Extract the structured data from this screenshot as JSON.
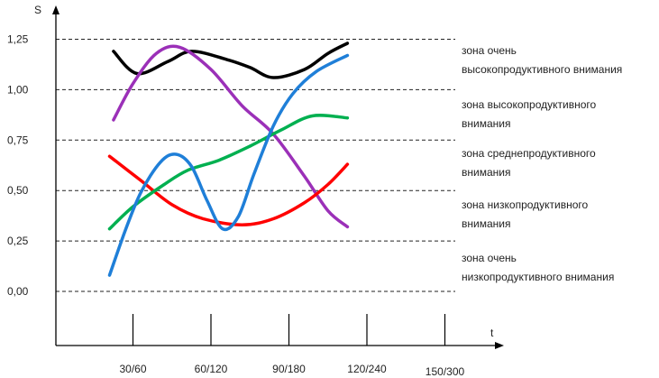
{
  "chart_data": {
    "type": "line",
    "xlabel": "t",
    "ylabel": "S",
    "ylim": [
      0,
      1.3
    ],
    "y_ticks": [
      {
        "value": 0.0,
        "label": "0,00"
      },
      {
        "value": 0.25,
        "label": "0,25"
      },
      {
        "value": 0.5,
        "label": "0,50"
      },
      {
        "value": 0.75,
        "label": "0,75"
      },
      {
        "value": 1.0,
        "label": "1,00"
      },
      {
        "value": 1.25,
        "label": "1,25"
      }
    ],
    "categories": [
      "30/60",
      "60/120",
      "90/180",
      "120/240",
      "150/300"
    ],
    "zones": [
      {
        "lines": [
          "зона очень",
          "высокопродуктивного внимания"
        ]
      },
      {
        "lines": [
          "зона высокопродуктивного",
          "внимания"
        ]
      },
      {
        "lines": [
          "зона среднепродуктивного",
          "внимания"
        ]
      },
      {
        "lines": [
          "зона низкопродуктивного",
          "внимания"
        ]
      },
      {
        "lines": [
          "зона очень",
          "низкопродуктивного внимания"
        ]
      }
    ],
    "grid": true,
    "series": [
      {
        "color": "#000000",
        "points": [
          [
            0.75,
            1.19
          ],
          [
            1.05,
            1.08
          ],
          [
            1.45,
            1.14
          ],
          [
            1.75,
            1.19
          ],
          [
            2.2,
            1.15
          ],
          [
            2.5,
            1.11
          ],
          [
            2.8,
            1.06
          ],
          [
            3.2,
            1.1
          ],
          [
            3.5,
            1.18
          ],
          [
            3.75,
            1.23
          ]
        ]
      },
      {
        "color": "#9b30b8",
        "points": [
          [
            0.75,
            0.85
          ],
          [
            1.0,
            1.03
          ],
          [
            1.3,
            1.18
          ],
          [
            1.6,
            1.21
          ],
          [
            2.0,
            1.1
          ],
          [
            2.4,
            0.92
          ],
          [
            2.8,
            0.78
          ],
          [
            3.2,
            0.57
          ],
          [
            3.5,
            0.4
          ],
          [
            3.75,
            0.32
          ]
        ]
      },
      {
        "color": "#ff0000",
        "points": [
          [
            0.7,
            0.67
          ],
          [
            1.1,
            0.55
          ],
          [
            1.5,
            0.43
          ],
          [
            1.9,
            0.36
          ],
          [
            2.4,
            0.33
          ],
          [
            2.8,
            0.36
          ],
          [
            3.2,
            0.44
          ],
          [
            3.5,
            0.53
          ],
          [
            3.75,
            0.63
          ]
        ]
      },
      {
        "color": "#00b050",
        "points": [
          [
            0.7,
            0.31
          ],
          [
            1.0,
            0.42
          ],
          [
            1.4,
            0.53
          ],
          [
            1.7,
            0.6
          ],
          [
            2.1,
            0.65
          ],
          [
            2.5,
            0.72
          ],
          [
            2.9,
            0.8
          ],
          [
            3.3,
            0.87
          ],
          [
            3.75,
            0.86
          ]
        ]
      },
      {
        "color": "#1f7fd8",
        "points": [
          [
            0.7,
            0.08
          ],
          [
            0.9,
            0.3
          ],
          [
            1.1,
            0.49
          ],
          [
            1.35,
            0.64
          ],
          [
            1.55,
            0.68
          ],
          [
            1.75,
            0.62
          ],
          [
            1.95,
            0.45
          ],
          [
            2.15,
            0.31
          ],
          [
            2.35,
            0.37
          ],
          [
            2.55,
            0.58
          ],
          [
            2.8,
            0.82
          ],
          [
            3.05,
            0.98
          ],
          [
            3.35,
            1.09
          ],
          [
            3.75,
            1.17
          ]
        ]
      }
    ]
  }
}
